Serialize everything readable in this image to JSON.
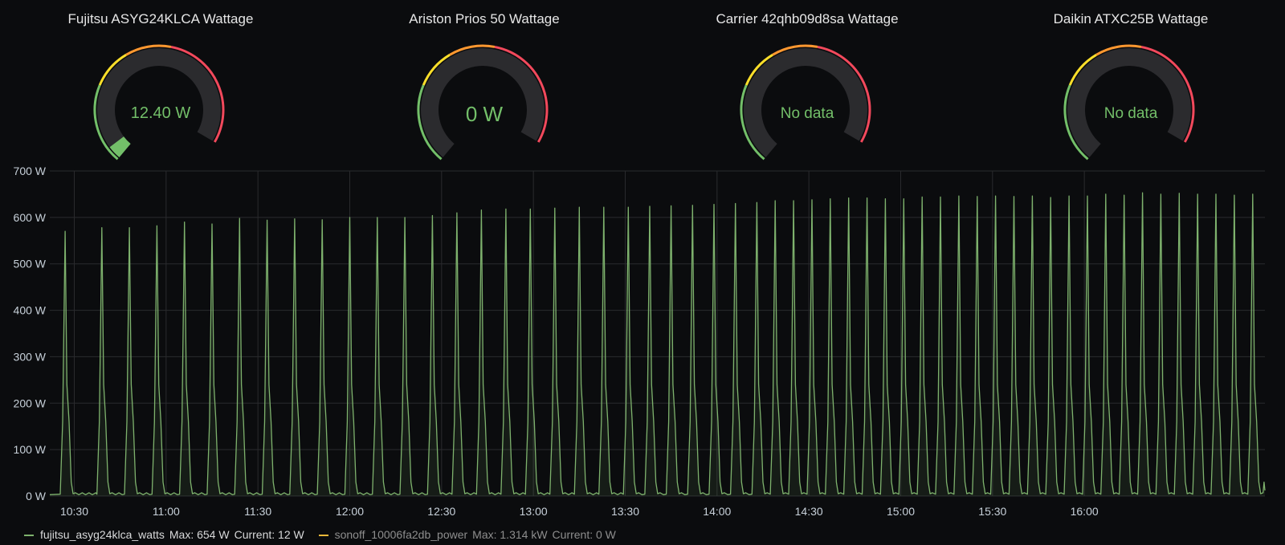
{
  "colors": {
    "green": "#73bf69",
    "yellow": "#fade2a",
    "orange": "#ff9830",
    "red": "#f2495c",
    "track": "#2b2b2e",
    "series_green": "#7eb26d",
    "series_yellow": "#eab839",
    "grid": "#2a2b2e"
  },
  "gauges": [
    {
      "title": "Fujitsu ASYG24KLCA Wattage",
      "value_text": "12.40 W",
      "fraction": 0.05
    },
    {
      "title": "Ariston Prios 50 Wattage",
      "value_text": "0 W",
      "fraction": 0
    },
    {
      "title": "Carrier 42qhb09d8sa Wattage",
      "value_text": "No data",
      "fraction": 0
    },
    {
      "title": "Daikin ATXC25B Wattage",
      "value_text": "No data",
      "fraction": 0
    }
  ],
  "chart_data": {
    "type": "line",
    "ylim": [
      0,
      700
    ],
    "yticks": [
      "0 W",
      "100 W",
      "200 W",
      "300 W",
      "400 W",
      "500 W",
      "600 W",
      "700 W"
    ],
    "ytick_values": [
      0,
      100,
      200,
      300,
      400,
      500,
      600,
      700
    ],
    "x_range": [
      "10:22",
      "16:59"
    ],
    "xticks": [
      "10:30",
      "11:00",
      "11:30",
      "12:00",
      "12:30",
      "13:00",
      "13:30",
      "14:00",
      "14:30",
      "15:00",
      "15:30",
      "16:00"
    ],
    "grid": true,
    "legend_position": "bottom-left",
    "series": [
      {
        "name": "fujitsu_asyg24klca_watts",
        "color": "#7eb26d",
        "peak_times": [
          "10:27",
          "10:39",
          "10:48",
          "10:57",
          "11:06",
          "11:15",
          "11:24",
          "11:33",
          "11:42",
          "11:51",
          "12:00",
          "12:09",
          "12:18",
          "12:27",
          "12:35",
          "12:43",
          "12:51",
          "12:59",
          "13:07",
          "13:15",
          "13:23",
          "13:31",
          "13:38",
          "13:45",
          "13:52",
          "13:59",
          "14:06",
          "14:13",
          "14:19",
          "14:25",
          "14:31",
          "14:37",
          "14:43",
          "14:49",
          "14:55",
          "15:01",
          "15:07",
          "15:13",
          "15:19",
          "15:25",
          "15:31",
          "15:37",
          "15:43",
          "15:49",
          "15:55",
          "16:01",
          "16:07",
          "16:13",
          "16:19",
          "16:25",
          "16:31",
          "16:37",
          "16:43",
          "16:49",
          "16:55"
        ],
        "peak_values": [
          570,
          578,
          578,
          582,
          590,
          586,
          598,
          594,
          597,
          595,
          600,
          600,
          600,
          604,
          610,
          616,
          618,
          618,
          620,
          622,
          622,
          622,
          624,
          625,
          626,
          628,
          630,
          632,
          636,
          636,
          638,
          640,
          642,
          642,
          640,
          640,
          644,
          644,
          646,
          645,
          646,
          645,
          646,
          643,
          646,
          646,
          650,
          648,
          653,
          650,
          652,
          650,
          650,
          648,
          650
        ],
        "max_label": "Max: 654 W",
        "current_label": "Current: 12 W"
      },
      {
        "name": "sonoff_10006fa2db_power",
        "color": "#eab839",
        "max_label": "Max: 1.314 kW",
        "current_label": "Current: 0 W"
      }
    ]
  }
}
